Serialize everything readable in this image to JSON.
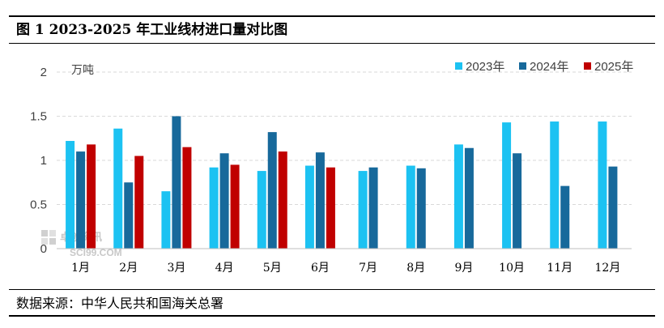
{
  "title": "图 1  2023-2025 年工业线材进口量对比图",
  "source": "数据来源：中华人民共和国海关总署",
  "watermark": {
    "cn": "卓创资讯",
    "en": "SCI99.COM"
  },
  "colors": {
    "s2023": "#1cc2f2",
    "s2024": "#17699b",
    "s2025": "#c00000",
    "grid": "#d9d9d9",
    "axis": "#bfbfbf"
  },
  "chart_data": {
    "type": "bar",
    "unit_label": "万吨",
    "categories": [
      "1月",
      "2月",
      "3月",
      "4月",
      "5月",
      "6月",
      "7月",
      "8月",
      "9月",
      "10月",
      "11月",
      "12月"
    ],
    "series": [
      {
        "name": "2023年",
        "values": [
          1.22,
          1.36,
          0.65,
          0.92,
          0.88,
          0.94,
          0.88,
          0.94,
          1.18,
          1.43,
          1.44,
          1.44
        ]
      },
      {
        "name": "2024年",
        "values": [
          1.1,
          0.75,
          1.5,
          1.08,
          1.32,
          1.09,
          0.92,
          0.91,
          1.14,
          1.08,
          0.71,
          0.93
        ]
      },
      {
        "name": "2025年",
        "values": [
          1.18,
          1.05,
          1.15,
          0.95,
          1.1,
          0.92,
          null,
          null,
          null,
          null,
          null,
          null
        ]
      }
    ],
    "yticks": [
      "0",
      "0.5",
      "1",
      "1.5",
      "2"
    ],
    "ylim": [
      0,
      2
    ],
    "grid": true,
    "legend_position": "top-right"
  }
}
